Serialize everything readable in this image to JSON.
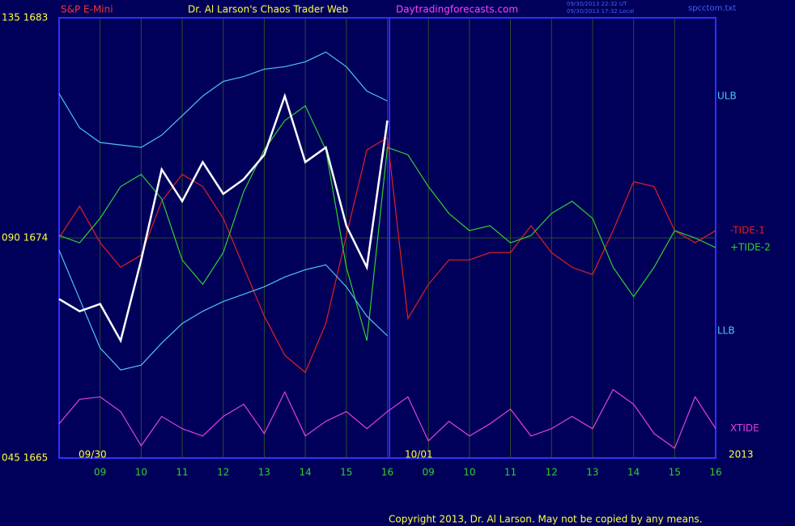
{
  "chart_data": {
    "type": "line",
    "title": "Dr. Al Larson's Chaos Trader Web",
    "symbol": "S&P E-Mini",
    "website": "Daytradingforecasts.com",
    "timestamp_ut": "09/30/2013 22:32 UT",
    "timestamp_local": "09/30/2013 17:32 Local",
    "file_name": "spcctom.txt",
    "copyright": "Copyright 2013, Dr. Al Larson. May not be copied by any means.",
    "date_labels": [
      "09/30",
      "10/01",
      "2013"
    ],
    "xlim": [
      0,
      16
    ],
    "xticks": [
      {
        "value": 1,
        "label": "09"
      },
      {
        "value": 2,
        "label": "10"
      },
      {
        "value": 3,
        "label": "11"
      },
      {
        "value": 4,
        "label": "12"
      },
      {
        "value": 5,
        "label": "13"
      },
      {
        "value": 6,
        "label": "14"
      },
      {
        "value": 7,
        "label": "15"
      },
      {
        "value": 8,
        "label": "16"
      },
      {
        "value": 9,
        "label": "09"
      },
      {
        "value": 10,
        "label": "10"
      },
      {
        "value": 11,
        "label": "11"
      },
      {
        "value": 12,
        "label": "12"
      },
      {
        "value": 13,
        "label": "13"
      },
      {
        "value": 14,
        "label": "14"
      },
      {
        "value": 15,
        "label": "15"
      },
      {
        "value": 16,
        "label": "16"
      }
    ],
    "ylim": [
      1665,
      1683
    ],
    "yticks": [
      {
        "value": 1665,
        "label": "045  1665"
      },
      {
        "value": 1674,
        "label": "090  1674"
      },
      {
        "value": 1683,
        "label": "135  1683"
      }
    ],
    "grid": true,
    "x": [
      0,
      0.5,
      1,
      1.5,
      2,
      2.5,
      3,
      3.5,
      4,
      4.5,
      5,
      5.5,
      6,
      6.5,
      7,
      7.5,
      8,
      8.5,
      9,
      9.5,
      10,
      10.5,
      11,
      11.5,
      12,
      12.5,
      13,
      13.5,
      14,
      14.5,
      15,
      15.5,
      16
    ],
    "series": [
      {
        "name": "ULB",
        "color": "#4fc3f7",
        "values": [
          1679.9,
          1678.5,
          1677.9,
          1677.8,
          1677.7,
          1678.2,
          1679.0,
          1679.8,
          1680.4,
          1680.6,
          1680.9,
          1681.0,
          1681.2,
          1681.6,
          1681.0,
          1680.0,
          1679.6,
          null,
          null,
          null,
          null,
          null,
          null,
          null,
          null,
          null,
          null,
          null,
          null,
          null,
          null,
          null,
          null
        ]
      },
      {
        "name": "-TIDE-1",
        "color": "#e02020",
        "values": [
          1674.0,
          1675.3,
          1673.8,
          1672.8,
          1673.3,
          1675.5,
          1676.6,
          1676.1,
          1674.8,
          1672.8,
          1670.8,
          1669.2,
          1668.5,
          1670.5,
          1674.1,
          1677.6,
          1678.1,
          1670.7,
          1672.1,
          1673.1,
          1673.1,
          1673.4,
          1673.4,
          1674.5,
          1673.4,
          1672.8,
          1672.5,
          1674.3,
          1676.3,
          1676.1,
          1674.3,
          1673.8,
          1674.3
        ]
      },
      {
        "name": "+TIDE-2",
        "color": "#30d030",
        "values": [
          1674.1,
          1673.8,
          1674.8,
          1676.1,
          1676.6,
          1675.6,
          1673.1,
          1672.1,
          1673.4,
          1675.9,
          1677.6,
          1678.8,
          1679.4,
          1677.6,
          1672.8,
          1669.8,
          1677.7,
          1677.4,
          1676.1,
          1675.0,
          1674.3,
          1674.5,
          1673.8,
          1674.1,
          1675.0,
          1675.5,
          1674.8,
          1672.8,
          1671.6,
          1672.8,
          1674.3,
          1674.0,
          1673.6
        ]
      },
      {
        "name": "LLB",
        "color": "#4fc3f7",
        "values": [
          1673.5,
          1671.5,
          1669.5,
          1668.6,
          1668.8,
          1669.7,
          1670.5,
          1671.0,
          1671.4,
          1671.7,
          1672.0,
          1672.4,
          1672.7,
          1672.9,
          1672.0,
          1670.8,
          1670.0,
          null,
          null,
          null,
          null,
          null,
          null,
          null,
          null,
          null,
          null,
          null,
          null,
          null,
          null,
          null,
          null
        ]
      },
      {
        "name": "XTIDE",
        "color": "#e040e0",
        "values": [
          1666.4,
          1667.4,
          1667.5,
          1666.9,
          1665.5,
          1666.7,
          1666.2,
          1665.9,
          1666.7,
          1667.2,
          1666.0,
          1667.7,
          1665.9,
          1666.5,
          1666.9,
          1666.2,
          1666.9,
          1667.5,
          1665.7,
          1666.5,
          1665.9,
          1666.4,
          1667.0,
          1665.9,
          1666.2,
          1666.7,
          1666.2,
          1667.8,
          1667.2,
          1666.0,
          1665.4,
          1667.5,
          1666.2
        ]
      },
      {
        "name": "S&P",
        "color": "#ffffff",
        "values": [
          1671.5,
          1671.0,
          1671.3,
          1669.8,
          1673.1,
          1676.8,
          1675.5,
          1677.1,
          1675.8,
          1676.4,
          1677.4,
          1679.8,
          1677.1,
          1677.7,
          1674.5,
          1672.8,
          1678.8,
          null,
          null,
          null,
          null,
          null,
          null,
          null,
          null,
          null,
          null,
          null,
          null,
          null,
          null,
          null,
          null
        ]
      }
    ]
  }
}
